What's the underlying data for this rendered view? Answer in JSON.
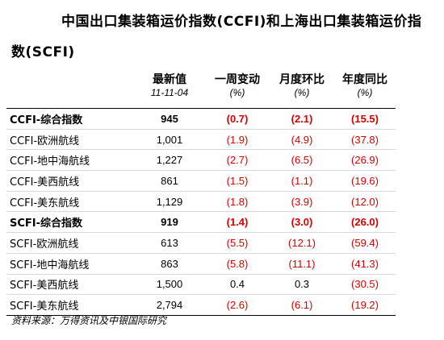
{
  "title": "中国出口集装箱运价指数(CCFI)和上海出口集装箱运价指数(SCFI)",
  "headers": {
    "col1": "最新值",
    "col2": "一周变动",
    "col3": "月度环比",
    "col4": "年度同比"
  },
  "subheaders": {
    "col1": "11-11-04",
    "col2": "(%)",
    "col3": "(%)",
    "col4": "(%)"
  },
  "rows": [
    {
      "name": "CCFI-综合指数",
      "latest": "945",
      "week": "(0.7)",
      "month": "(2.1)",
      "year": "(15.5)"
    },
    {
      "name": "CCFI-欧洲航线",
      "latest": "1,001",
      "week": "(1.9)",
      "month": "(4.9)",
      "year": "(37.8)"
    },
    {
      "name": "CCFI-地中海航线",
      "latest": "1,227",
      "week": "(2.7)",
      "month": "(6.5)",
      "year": "(26.9)"
    },
    {
      "name": "CCFI-美西航线",
      "latest": "861",
      "week": "(1.5)",
      "month": "(1.1)",
      "year": "(19.6)"
    },
    {
      "name": "CCFI-美东航线",
      "latest": "1,129",
      "week": "(1.8)",
      "month": "(3.9)",
      "year": "(12.0)"
    },
    {
      "name": "SCFI-综合指数",
      "latest": "919",
      "week": "(1.4)",
      "month": "(3.0)",
      "year": "(26.0)"
    },
    {
      "name": "SCFI-欧洲航线",
      "latest": "613",
      "week": "(5.5)",
      "month": "(12.1)",
      "year": "(59.4)"
    },
    {
      "name": "SCFI-地中海航线",
      "latest": "863",
      "week": "(5.8)",
      "month": "(11.1)",
      "year": "(41.3)"
    },
    {
      "name": "SCFI-美西航线",
      "latest": "1,500",
      "week": "0.4",
      "month": "0.3",
      "year": "(30.5)"
    },
    {
      "name": "SCFI-美东航线",
      "latest": "2,794",
      "week": "(2.6)",
      "month": "(6.1)",
      "year": "(19.2)"
    }
  ],
  "source": "资料来源：万得资讯及中银国际研究",
  "colors": {
    "negative": "#d00000",
    "text": "#000000"
  }
}
